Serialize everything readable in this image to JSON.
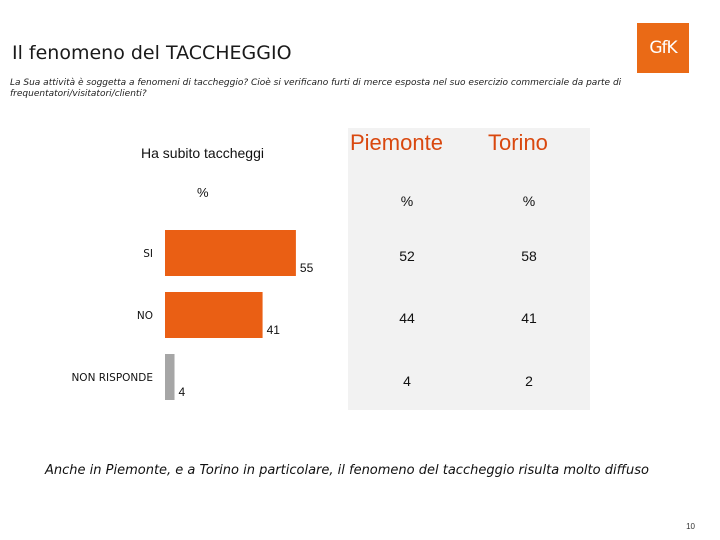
{
  "slide": {
    "title": "Il fenomeno del TACCHEGGIO",
    "logo_text": "GfK",
    "subtitle": "La Sua attività è soggetta a fenomeni di taccheggio? Cioè si verificano furti di merce esposta nel suo esercizio commerciale da parte di frequentatori/visitatori/clienti?",
    "footnote": "Anche in Piemonte, e a Torino in particolare, il fenomeno del taccheggio risulta molto diffuso",
    "page_number": "10"
  },
  "chart_data": {
    "type": "bar",
    "orientation": "horizontal",
    "title": "Ha subito taccheggi",
    "unit_label": "%",
    "categories": [
      "SI",
      "NO",
      "NON RISPONDE"
    ],
    "values": [
      55,
      41,
      4
    ],
    "value_labels": [
      "55",
      "41",
      "4"
    ],
    "bar_colors": [
      "#ea5f14",
      "#ea5f14",
      "#a6a6a6"
    ],
    "xlim": [
      0,
      100
    ],
    "grid": false
  },
  "table": {
    "columns": [
      {
        "header": "Piemonte",
        "unit": "%",
        "values": [
          "52",
          "44",
          "4"
        ]
      },
      {
        "header": "Torino",
        "unit": "%",
        "values": [
          "58",
          "41",
          "2"
        ]
      }
    ],
    "header_color": "#d9480f",
    "background": "#f2f2f2"
  }
}
